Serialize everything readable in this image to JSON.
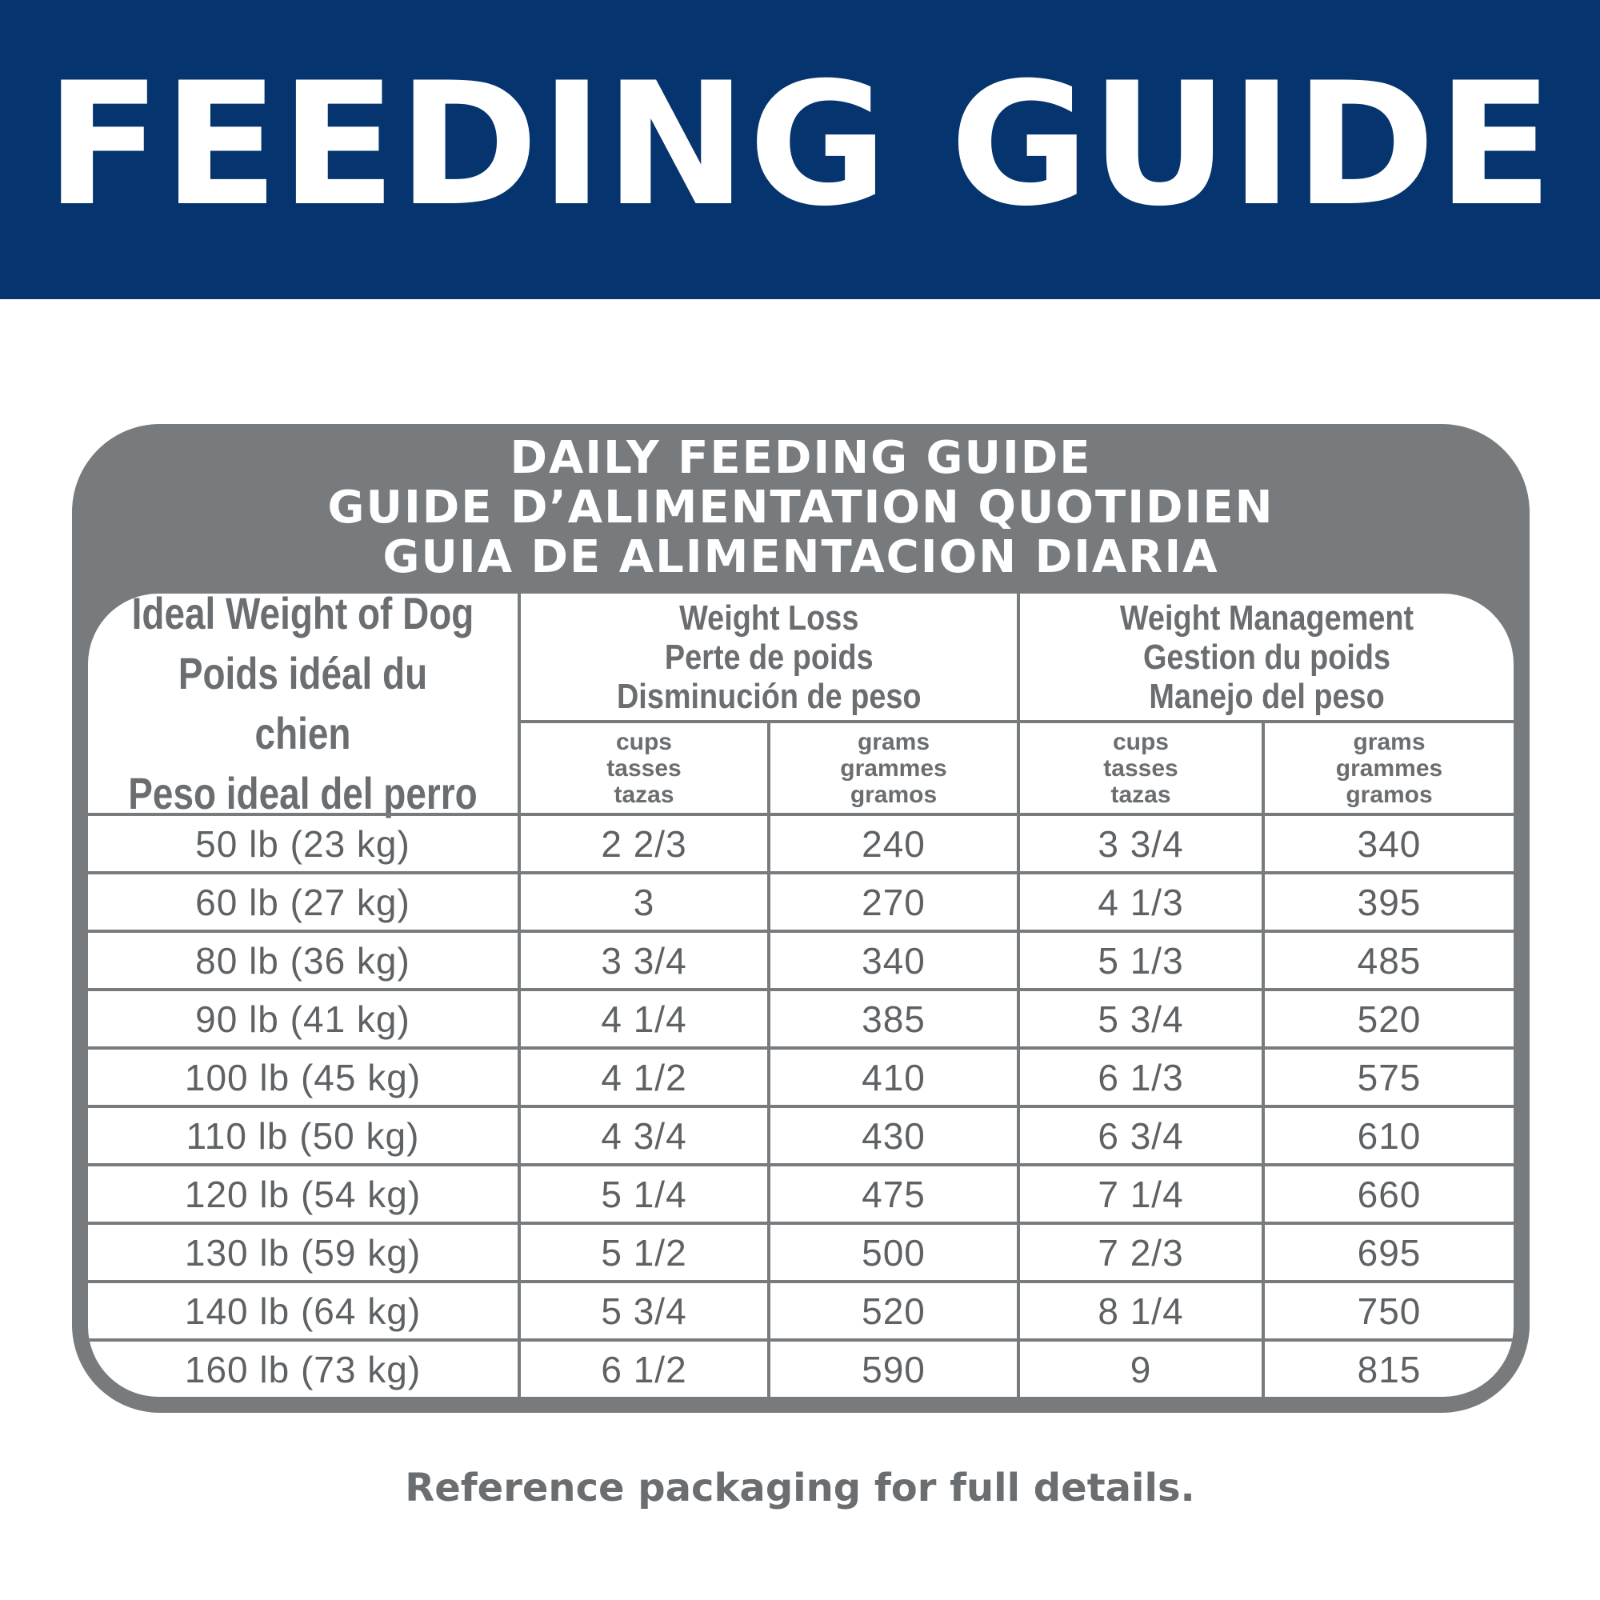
{
  "banner": {
    "title": "FEEDING GUIDE",
    "color": "#06346f"
  },
  "panel": {
    "title_en": "DAILY FEEDING GUIDE",
    "title_fr": "GUIDE D’ALIMENTATION QUOTIDIEN",
    "title_es": "GUIA DE ALIMENTACION DIARIA",
    "color": "#777b7e"
  },
  "table": {
    "weight_header": [
      "Ideal Weight of Dog",
      "Poids idéal du chien",
      "Peso ideal del perro"
    ],
    "loss_header": [
      "Weight Loss",
      "Perte de poids",
      "Disminución de peso"
    ],
    "management_header": [
      "Weight Management",
      "Gestion du poids",
      "Manejo del peso"
    ],
    "cups_header": [
      "cups",
      "tasses",
      "tazas"
    ],
    "grams_header": [
      "grams",
      "grammes",
      "gramos"
    ],
    "rows": [
      {
        "weight": "50 lb (23 kg)",
        "loss_cups": "2 2/3",
        "loss_grams": "240",
        "mgmt_cups": "3 3/4",
        "mgmt_grams": "340"
      },
      {
        "weight": "60 lb (27 kg)",
        "loss_cups": "3",
        "loss_grams": "270",
        "mgmt_cups": "4 1/3",
        "mgmt_grams": "395"
      },
      {
        "weight": "80 lb (36 kg)",
        "loss_cups": "3 3/4",
        "loss_grams": "340",
        "mgmt_cups": "5 1/3",
        "mgmt_grams": "485"
      },
      {
        "weight": "90 lb (41 kg)",
        "loss_cups": "4 1/4",
        "loss_grams": "385",
        "mgmt_cups": "5 3/4",
        "mgmt_grams": "520"
      },
      {
        "weight": "100 lb (45 kg)",
        "loss_cups": "4 1/2",
        "loss_grams": "410",
        "mgmt_cups": "6 1/3",
        "mgmt_grams": "575"
      },
      {
        "weight": "110 lb (50 kg)",
        "loss_cups": "4 3/4",
        "loss_grams": "430",
        "mgmt_cups": "6 3/4",
        "mgmt_grams": "610"
      },
      {
        "weight": "120 lb (54 kg)",
        "loss_cups": "5 1/4",
        "loss_grams": "475",
        "mgmt_cups": "7 1/4",
        "mgmt_grams": "660"
      },
      {
        "weight": "130 lb (59 kg)",
        "loss_cups": "5 1/2",
        "loss_grams": "500",
        "mgmt_cups": "7 2/3",
        "mgmt_grams": "695"
      },
      {
        "weight": "140 lb (64 kg)",
        "loss_cups": "5 3/4",
        "loss_grams": "520",
        "mgmt_cups": "8 1/4",
        "mgmt_grams": "750"
      },
      {
        "weight": "160 lb (73 kg)",
        "loss_cups": "6 1/2",
        "loss_grams": "590",
        "mgmt_cups": "9",
        "mgmt_grams": "815"
      }
    ]
  },
  "footer": {
    "text": "Reference packaging for full details."
  }
}
